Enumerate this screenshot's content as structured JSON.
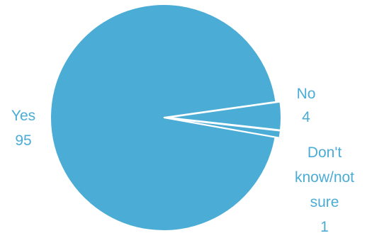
{
  "chart_data": {
    "type": "pie",
    "slices": [
      {
        "label": "Yes",
        "value": 95
      },
      {
        "label": "No",
        "value": 4
      },
      {
        "label": "Don't know/not sure",
        "value": 1
      }
    ],
    "colors": {
      "slice_fill": "#4BACD6",
      "slice_stroke": "#ffffff",
      "label_color": "#4BACD6"
    }
  },
  "labels": {
    "yes_name": "Yes",
    "yes_value": "95",
    "no_name": "No",
    "no_value": "4",
    "dk_line1": "Don't",
    "dk_line2": "know/not",
    "dk_line3": "sure",
    "dk_value": "1"
  }
}
